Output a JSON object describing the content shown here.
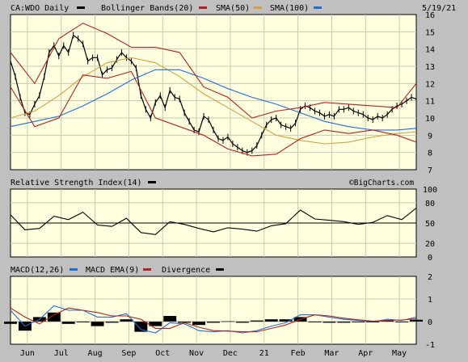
{
  "header": {
    "symbol": "CA:WDO Daily",
    "date": "5/19/21",
    "legend": [
      {
        "label": "Bollinger Bands(20)",
        "color": "#b22222"
      },
      {
        "label": "SMA(50)",
        "color": "#d4a040"
      },
      {
        "label": "SMA(100)",
        "color": "#1e6fd9"
      }
    ]
  },
  "watermark": "©BigCharts.com",
  "colors": {
    "panel_bg": "#ffffe0",
    "frame_bg": "#c0c0c0",
    "price": "#000000",
    "bollinger": "#b22222",
    "sma50": "#d4a040",
    "sma100": "#1e6fd9",
    "macd": "#1e6fd9",
    "macd_ema": "#b22222",
    "divergence": "#000000"
  },
  "x_axis": {
    "labels": [
      "Jun",
      "Jul",
      "Aug",
      "Sep",
      "Oct",
      "Nov",
      "Dec",
      "21",
      "Feb",
      "Mar",
      "Apr",
      "May"
    ]
  },
  "chart_data": [
    {
      "type": "line",
      "panel": "price",
      "title": "CA:WDO Daily",
      "y_ticks": [
        7,
        8,
        9,
        10,
        11,
        12,
        13,
        14,
        15,
        16
      ],
      "ylim": [
        7,
        16
      ],
      "grid": true,
      "legend_position": "top",
      "series": [
        {
          "name": "CA:WDO Daily",
          "x": [
            0,
            3,
            6,
            9,
            12,
            15,
            18,
            21,
            24,
            27,
            30,
            33,
            36,
            39,
            42,
            45,
            48,
            51,
            54,
            57,
            60,
            63,
            66,
            69,
            72,
            75,
            78,
            81,
            84,
            87,
            90,
            93,
            96,
            99,
            102,
            105,
            108,
            111,
            114,
            117,
            120,
            123,
            126,
            129,
            132,
            135,
            138,
            141,
            144,
            147,
            150,
            153,
            156,
            159,
            162,
            165,
            168,
            171,
            174,
            177,
            180,
            183,
            186,
            189,
            192,
            195,
            198,
            201,
            204,
            207,
            210,
            213,
            216,
            219,
            222,
            225,
            228,
            231,
            234,
            237,
            240,
            243,
            246,
            249,
            252
          ],
          "values": [
            13.3,
            12.4,
            11.2,
            10.3,
            10.2,
            10.8,
            11.3,
            12.4,
            13.8,
            14.2,
            13.6,
            14.2,
            13.8,
            14.8,
            14.6,
            14.3,
            13.3,
            13.5,
            13.5,
            12.5,
            12.8,
            12.9,
            13.4,
            13.8,
            13.5,
            13.3,
            12.9,
            11.3,
            10.5,
            10.0,
            10.9,
            11.3,
            10.6,
            11.6,
            11.2,
            11.1,
            10.3,
            9.8,
            9.3,
            9.2,
            10.1,
            9.9,
            9.3,
            8.8,
            8.7,
            8.9,
            8.5,
            8.3,
            8.1,
            8.0,
            8.1,
            8.4,
            9.0,
            9.6,
            9.9,
            10.0,
            9.6,
            9.5,
            9.4,
            9.7,
            10.5,
            10.7,
            10.6,
            10.4,
            10.3,
            10.1,
            10.2,
            10.1,
            10.5,
            10.5,
            10.6,
            10.4,
            10.3,
            10.2,
            10.0,
            9.9,
            10.1,
            10.0,
            10.2,
            10.5,
            10.7,
            10.8,
            11.0,
            11.2,
            11.1
          ]
        },
        {
          "name": "SMA(50)",
          "x": [
            0,
            15,
            30,
            45,
            60,
            75,
            90,
            105,
            120,
            135,
            150,
            165,
            180,
            195,
            210,
            225,
            240,
            252
          ],
          "values": [
            10.0,
            10.4,
            11.3,
            12.4,
            13.2,
            13.5,
            13.2,
            12.4,
            11.4,
            10.6,
            9.8,
            9.0,
            8.7,
            8.5,
            8.6,
            8.9,
            9.1,
            9.2
          ]
        },
        {
          "name": "SMA(100)",
          "x": [
            0,
            15,
            30,
            45,
            60,
            75,
            90,
            105,
            120,
            135,
            150,
            165,
            180,
            195,
            210,
            225,
            240,
            252
          ],
          "values": [
            9.5,
            9.8,
            10.1,
            10.7,
            11.4,
            12.2,
            12.8,
            12.8,
            12.3,
            11.7,
            11.2,
            10.8,
            10.3,
            9.8,
            9.5,
            9.3,
            9.3,
            9.4
          ]
        },
        {
          "name": "Bollinger Upper",
          "x": [
            0,
            15,
            30,
            45,
            60,
            75,
            90,
            105,
            120,
            135,
            150,
            165,
            180,
            195,
            210,
            225,
            240,
            252
          ],
          "values": [
            13.8,
            12.0,
            14.6,
            15.5,
            14.9,
            14.1,
            14.1,
            13.8,
            11.8,
            11.2,
            10.0,
            10.4,
            10.6,
            10.9,
            10.8,
            10.7,
            10.6,
            12.0
          ]
        },
        {
          "name": "Bollinger Lower",
          "x": [
            0,
            15,
            30,
            45,
            60,
            75,
            90,
            105,
            120,
            135,
            150,
            165,
            180,
            195,
            210,
            225,
            240,
            252
          ],
          "values": [
            11.8,
            9.5,
            10.0,
            12.5,
            12.3,
            12.7,
            10.0,
            9.5,
            9.0,
            8.2,
            7.8,
            7.9,
            8.8,
            9.3,
            9.1,
            9.3,
            9.0,
            8.6
          ]
        }
      ]
    },
    {
      "type": "line",
      "panel": "rsi",
      "title": "Relative Strength Index(14)",
      "y_ticks": [
        0,
        20,
        50,
        80,
        100
      ],
      "ylim": [
        0,
        100
      ],
      "grid": true,
      "reference_line": 50,
      "series": [
        {
          "name": "Relative Strength Index(14)",
          "x": [
            0,
            9,
            18,
            27,
            36,
            45,
            54,
            63,
            72,
            81,
            90,
            99,
            108,
            117,
            126,
            135,
            144,
            153,
            162,
            171,
            180,
            189,
            198,
            207,
            216,
            225,
            234,
            243,
            252
          ],
          "values": [
            62,
            40,
            42,
            60,
            55,
            66,
            47,
            45,
            57,
            36,
            33,
            52,
            48,
            42,
            37,
            43,
            41,
            38,
            46,
            49,
            69,
            56,
            54,
            52,
            48,
            51,
            61,
            55,
            72
          ]
        }
      ]
    },
    {
      "type": "line",
      "panel": "macd",
      "title": "MACD(12,26)",
      "y_ticks": [
        -1,
        0,
        1,
        2
      ],
      "ylim": [
        -1,
        2
      ],
      "grid": true,
      "series": [
        {
          "name": "MACD(12,26)",
          "x": [
            0,
            9,
            18,
            27,
            36,
            45,
            54,
            63,
            72,
            81,
            90,
            99,
            108,
            117,
            126,
            135,
            144,
            153,
            162,
            171,
            180,
            189,
            198,
            207,
            216,
            225,
            234,
            243,
            252
          ],
          "values": [
            0.5,
            -0.2,
            0.1,
            0.7,
            0.5,
            0.5,
            0.2,
            0.2,
            0.35,
            -0.35,
            -0.5,
            -0.05,
            -0.1,
            -0.4,
            -0.45,
            -0.4,
            -0.5,
            -0.4,
            -0.2,
            -0.05,
            0.3,
            0.3,
            0.2,
            0.1,
            0.05,
            0.0,
            0.1,
            0.05,
            0.2
          ]
        },
        {
          "name": "MACD EMA(9)",
          "x": [
            0,
            9,
            18,
            27,
            36,
            45,
            54,
            63,
            72,
            81,
            90,
            99,
            108,
            117,
            126,
            135,
            144,
            153,
            162,
            171,
            180,
            189,
            198,
            207,
            216,
            225,
            234,
            243,
            252
          ],
          "values": [
            0.6,
            0.2,
            -0.1,
            0.3,
            0.6,
            0.5,
            0.4,
            0.25,
            0.25,
            0.1,
            -0.3,
            -0.3,
            -0.05,
            -0.25,
            -0.4,
            -0.42,
            -0.45,
            -0.45,
            -0.3,
            -0.15,
            0.1,
            0.3,
            0.25,
            0.15,
            0.08,
            0.02,
            0.05,
            0.07,
            0.12
          ]
        }
      ]
    }
  ],
  "panel_titles": {
    "rsi": "Relative Strength Index(14)",
    "macd": "MACD(12,26)",
    "macd_legend_ema": "MACD EMA(9)",
    "macd_legend_div": "Divergence"
  }
}
